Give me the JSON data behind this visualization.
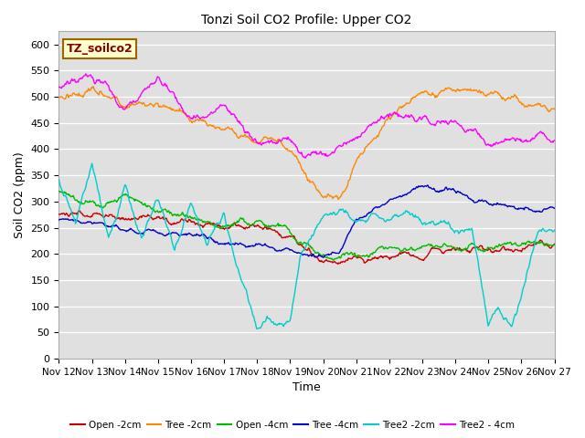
{
  "title": "Tonzi Soil CO2 Profile: Upper CO2",
  "xlabel": "Time",
  "ylabel": "Soil CO2 (ppm)",
  "ylim": [
    0,
    625
  ],
  "yticks": [
    0,
    50,
    100,
    150,
    200,
    250,
    300,
    350,
    400,
    450,
    500,
    550,
    600
  ],
  "xstart": 12,
  "xend": 27,
  "xtick_labels": [
    "Nov 12",
    "Nov 13",
    "Nov 14",
    "Nov 15",
    "Nov 16",
    "Nov 17",
    "Nov 18",
    "Nov 19",
    "Nov 20",
    "Nov 21",
    "Nov 22",
    "Nov 23",
    "Nov 24",
    "Nov 25",
    "Nov 26",
    "Nov 27"
  ],
  "series_names": [
    "Open -2cm",
    "Tree -2cm",
    "Open -4cm",
    "Tree -4cm",
    "Tree2 -2cm",
    "Tree2 - 4cm"
  ],
  "series_colors": [
    "#cc0000",
    "#ff8800",
    "#00bb00",
    "#0000cc",
    "#00cccc",
    "#ff00ff"
  ],
  "legend_label": "TZ_soilco2",
  "plot_bg": "#e0e0e0",
  "fig_bg": "#ffffff"
}
